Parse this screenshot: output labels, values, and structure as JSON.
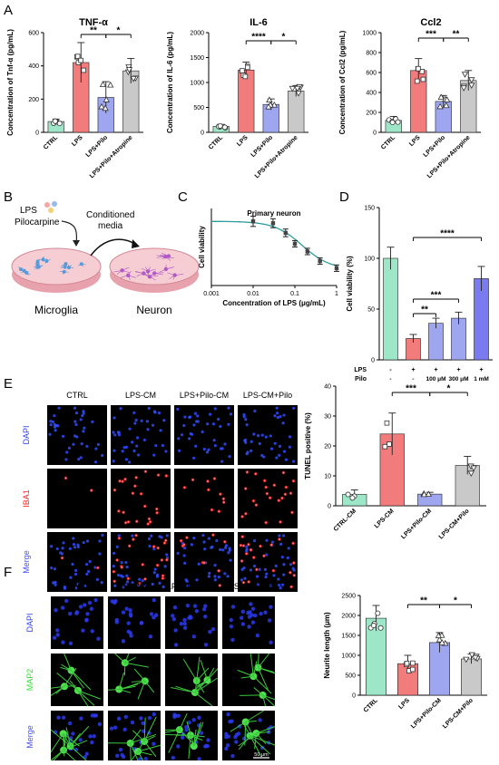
{
  "panel_letters": {
    "A": "A",
    "B": "B",
    "C": "C",
    "D": "D",
    "E": "E",
    "F": "F"
  },
  "colors": {
    "ctrl": "#9ee6c8",
    "lps": "#f27c7c",
    "pilo": "#9ea6f0",
    "atropine": "#c9c9c9",
    "purple": "#7a7bf0",
    "fitline": "#2a9d9d",
    "sig": "#000000"
  },
  "panel_b": {
    "lps_label": "LPS",
    "pilocarpine_label": "Pilocarpine",
    "conditioned_label_1": "Conditioned",
    "conditioned_label_2": "media",
    "microglia_label": "Microglia",
    "neuron_label": "Neuron"
  },
  "image_grids": {
    "E": {
      "columns": [
        "CTRL",
        "LPS-CM",
        "LPS+Pilo-CM",
        "LPS-CM+Pilo"
      ],
      "rows": [
        "DAPI",
        "IBA1",
        "Merge"
      ]
    },
    "F": {
      "columns": [
        "CTRL",
        "LPS-CM",
        "LPS+Pilo-CM",
        "LPS-CM+Pilo"
      ],
      "rows": [
        "DAPI",
        "MAP2",
        "Merge"
      ],
      "scalebar": "50 μm"
    }
  },
  "chart_data": [
    {
      "id": "tnf",
      "type": "bar",
      "title": "TNF-α",
      "ylabel": "Concentration of Tnf-α (pg/mL)",
      "categories": [
        "CTRL",
        "LPS",
        "LPS+Pilo",
        "LPS+Pilo+Atropine"
      ],
      "values": [
        65,
        420,
        210,
        370
      ],
      "errors": [
        15,
        120,
        95,
        75
      ],
      "ylim": [
        0,
        600
      ],
      "yticks": [
        0,
        200,
        400,
        600
      ],
      "sig": [
        {
          "from": 1,
          "to": 2,
          "label": "**"
        },
        {
          "from": 2,
          "to": 3,
          "label": "*"
        }
      ]
    },
    {
      "id": "il6",
      "type": "bar",
      "title": "IL-6",
      "ylabel": "Concentration of IL-6 (pg/mL)",
      "categories": [
        "CTRL",
        "LPS",
        "LPS+Pilo",
        "LPS+Pilo+Atropine"
      ],
      "values": [
        120,
        1250,
        560,
        830
      ],
      "errors": [
        40,
        160,
        110,
        110
      ],
      "ylim": [
        0,
        2000
      ],
      "yticks": [
        0,
        500,
        1000,
        1500,
        2000
      ],
      "sig": [
        {
          "from": 1,
          "to": 2,
          "label": "****"
        },
        {
          "from": 2,
          "to": 3,
          "label": "*"
        }
      ]
    },
    {
      "id": "ccl2",
      "type": "bar",
      "title": "Ccl2",
      "ylabel": "Concentration of Ccl2 (pg/mL)",
      "categories": [
        "CTRL",
        "LPS",
        "LPS+Pilo",
        "LPS+Pilo+Atropine"
      ],
      "values": [
        120,
        620,
        310,
        520
      ],
      "errors": [
        40,
        120,
        60,
        100
      ],
      "ylim": [
        0,
        1000
      ],
      "yticks": [
        0,
        200,
        400,
        600,
        800,
        1000
      ],
      "sig": [
        {
          "from": 1,
          "to": 2,
          "label": "***"
        },
        {
          "from": 2,
          "to": 3,
          "label": "**"
        }
      ]
    },
    {
      "id": "viab_c",
      "type": "scatter",
      "title": "Primary neuron",
      "xlabel": "Concentration of LPS (μg/mL)",
      "ylabel": "Cell viability",
      "x": [
        0.01,
        0.03,
        0.06,
        0.1,
        0.2,
        0.4,
        1
      ],
      "y": [
        100,
        97,
        82,
        65,
        53,
        38,
        27
      ],
      "errors": [
        8,
        7,
        6,
        5,
        5,
        5,
        5
      ],
      "xticks": [
        "0.001",
        "0.01",
        "0.1",
        "1"
      ]
    },
    {
      "id": "viab_d",
      "type": "bar",
      "title": "",
      "ylabel": "Cell viability (%)",
      "values": [
        100,
        21,
        36,
        41,
        80
      ],
      "errors": [
        11,
        4,
        5,
        6,
        12
      ],
      "ylim": [
        0,
        150
      ],
      "yticks": [
        0,
        50,
        100,
        150
      ],
      "lps_row": [
        "-",
        "+",
        "+",
        "+",
        "+"
      ],
      "pilo_row": [
        "-",
        "-",
        "100 μM",
        "300 μM",
        "1 mM"
      ],
      "row_labels": [
        "LPS",
        "Pilo"
      ],
      "sig": [
        {
          "from": 1,
          "to": 2,
          "label": "**"
        },
        {
          "from": 1,
          "to": 3,
          "label": "***"
        },
        {
          "from": 1,
          "to": 4,
          "label": "****"
        }
      ]
    },
    {
      "id": "tunel",
      "type": "bar",
      "title": "",
      "ylabel": "TUNEL positive (%)",
      "categories": [
        "CTRL-CM",
        "LPS-CM",
        "LPS+Pilo-CM",
        "LPS-CM+Pilo"
      ],
      "values": [
        3.8,
        24,
        3.9,
        13.5
      ],
      "errors": [
        1.5,
        7,
        0.6,
        3
      ],
      "ylim": [
        0,
        40
      ],
      "yticks": [
        0,
        10,
        20,
        30,
        40
      ],
      "sig": [
        {
          "from": 1,
          "to": 2,
          "label": "***"
        },
        {
          "from": 2,
          "to": 3,
          "label": "*"
        }
      ]
    },
    {
      "id": "neurite",
      "type": "bar",
      "title": "",
      "ylabel": "Neurite length (μm)",
      "categories": [
        "CTRL",
        "LPS",
        "LPS+Pilo-CM",
        "LPS-CM+Pilo"
      ],
      "values": [
        1930,
        790,
        1320,
        910
      ],
      "errors": [
        320,
        210,
        250,
        120
      ],
      "ylim": [
        0,
        2500
      ],
      "yticks": [
        0,
        500,
        1000,
        1500,
        2000,
        2500
      ],
      "sig": [
        {
          "from": 1,
          "to": 2,
          "label": "**"
        },
        {
          "from": 2,
          "to": 3,
          "label": "*"
        }
      ]
    }
  ]
}
